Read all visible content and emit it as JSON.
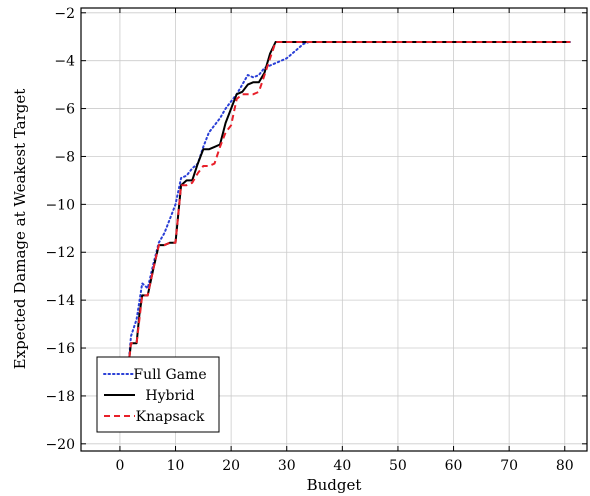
{
  "chart_data": {
    "type": "line",
    "title": "",
    "xlabel": "Budget",
    "ylabel": "Expected Damage at Weakest Target",
    "xlim": [
      -7,
      84
    ],
    "ylim": [
      -20.3,
      -1.8
    ],
    "xticks": [
      0,
      10,
      20,
      30,
      40,
      50,
      60,
      70,
      80
    ],
    "yticks": [
      -20,
      -18,
      -16,
      -14,
      -12,
      -10,
      -8,
      -6,
      -4,
      -2
    ],
    "grid": true,
    "legend_position": "bottom-left",
    "series": [
      {
        "name": "Full Game",
        "color": "#2a3fd6",
        "dash": "dotted",
        "x": [
          1.5,
          2,
          3,
          4,
          5,
          6,
          7,
          8,
          9,
          10,
          11,
          12,
          13,
          14,
          15,
          16,
          17,
          18,
          19,
          20,
          21,
          22,
          23,
          24,
          25,
          26,
          27,
          28,
          29,
          30,
          31,
          32,
          33,
          34,
          81
        ],
        "y": [
          -16.8,
          -15.5,
          -14.8,
          -13.3,
          -13.5,
          -12.5,
          -11.6,
          -11.2,
          -10.6,
          -10.0,
          -8.9,
          -8.8,
          -8.5,
          -8.3,
          -7.6,
          -7.0,
          -6.7,
          -6.4,
          -6.0,
          -5.7,
          -5.4,
          -5.0,
          -4.6,
          -4.7,
          -4.6,
          -4.3,
          -4.2,
          -4.1,
          -4.0,
          -3.9,
          -3.7,
          -3.5,
          -3.3,
          -3.22,
          -3.22
        ]
      },
      {
        "name": "Hybrid",
        "color": "#000000",
        "dash": "solid",
        "x": [
          1.5,
          2,
          3,
          3.5,
          4,
          5,
          6,
          7,
          8,
          9,
          10,
          10.5,
          11,
          12,
          13,
          14,
          15,
          16,
          17,
          18,
          19,
          20,
          21,
          22,
          23,
          24,
          25,
          26,
          27,
          28,
          81
        ],
        "y": [
          -16.8,
          -15.8,
          -15.8,
          -14.6,
          -13.8,
          -13.8,
          -12.7,
          -11.7,
          -11.7,
          -11.6,
          -11.6,
          -10.4,
          -9.2,
          -9.0,
          -9.0,
          -8.3,
          -7.7,
          -7.7,
          -7.6,
          -7.5,
          -6.6,
          -6.0,
          -5.4,
          -5.3,
          -5.0,
          -4.9,
          -4.9,
          -4.5,
          -3.7,
          -3.22,
          -3.22
        ]
      },
      {
        "name": "Knapsack",
        "color": "#e8202a",
        "dash": "dashed",
        "x": [
          1.5,
          2,
          3,
          4,
          5,
          6,
          7,
          8,
          9,
          10,
          11,
          12,
          13,
          14,
          15,
          16,
          17,
          18,
          19,
          20,
          21,
          22,
          23,
          24,
          25,
          26,
          27,
          28,
          81
        ],
        "y": [
          -16.8,
          -15.8,
          -15.8,
          -13.8,
          -13.8,
          -12.7,
          -11.7,
          -11.7,
          -11.6,
          -11.6,
          -9.2,
          -9.2,
          -9.1,
          -8.7,
          -8.4,
          -8.4,
          -8.3,
          -7.6,
          -7.0,
          -6.7,
          -5.6,
          -5.4,
          -5.4,
          -5.4,
          -5.3,
          -4.6,
          -3.9,
          -3.22,
          -3.22
        ]
      }
    ]
  }
}
